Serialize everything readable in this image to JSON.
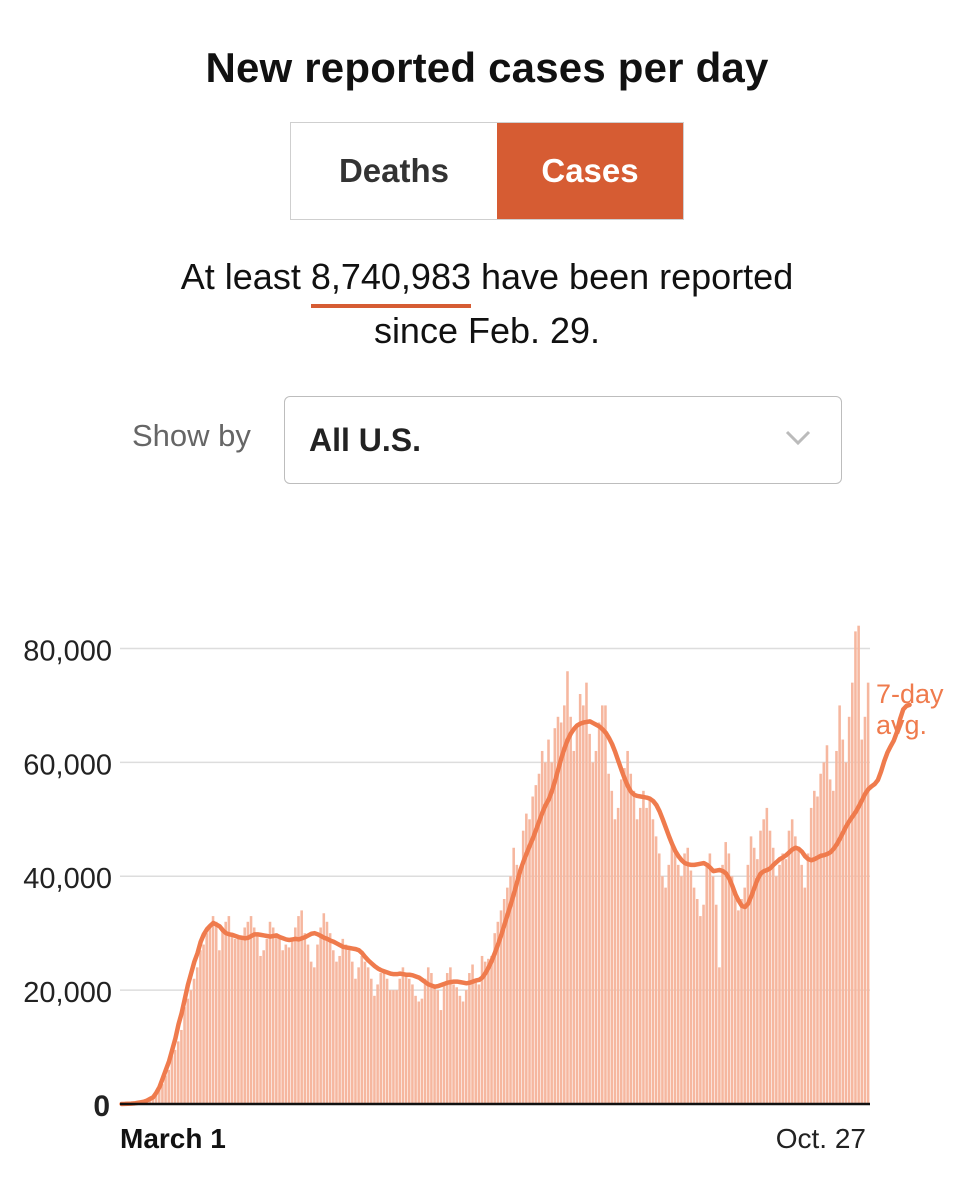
{
  "page": {
    "title": "New reported cases per day",
    "toggle": {
      "deaths_label": "Deaths",
      "cases_label": "Cases",
      "selected": "Cases"
    },
    "summary": {
      "prefix": "At least ",
      "total": "8,740,983",
      "suffix": " have been reported",
      "line2": "since Feb. 29."
    },
    "show_by": {
      "label": "Show by",
      "value": "All U.S.",
      "icon": "chevron-down-icon"
    }
  },
  "colors": {
    "accent": "#d65c33",
    "bar": "#f6b79f",
    "line": "#ef7b4d",
    "grid": "#dddddd"
  },
  "chart_data": {
    "type": "bar",
    "x_start_label": "March 1",
    "x_end_label": "Oct. 27",
    "yticks": [
      "0",
      "20,000",
      "40,000",
      "60,000",
      "80,000"
    ],
    "ylim": [
      0,
      85000
    ],
    "series": [
      {
        "name": "",
        "values": [
          0,
          20,
          40,
          60,
          100,
          200,
          250,
          400,
          600,
          900,
          1200,
          1800,
          2500,
          3500,
          5000,
          6000,
          8500,
          9500,
          11000,
          13000,
          17000,
          18500,
          20000,
          22000,
          24000,
          27000,
          28000,
          30000,
          31000,
          33000,
          32000,
          27000,
          31000,
          32000,
          33000,
          30000,
          29000,
          29000,
          29000,
          31000,
          32000,
          33000,
          31000,
          30000,
          26000,
          27000,
          29000,
          32000,
          31000,
          30000,
          29000,
          27000,
          28000,
          27500,
          29000,
          31000,
          33000,
          34000,
          30000,
          28000,
          25000,
          24000,
          28000,
          31000,
          33500,
          32000,
          30000,
          27000,
          25000,
          26000,
          29000,
          28000,
          27000,
          25000,
          22000,
          24000,
          26000,
          25000,
          24000,
          22000,
          19000,
          21000,
          23000,
          23000,
          22000,
          20000,
          20000,
          20000,
          22000,
          24000,
          23000,
          22000,
          21000,
          19000,
          18000,
          18500,
          22000,
          24000,
          23000,
          21000,
          20000,
          16500,
          21000,
          23000,
          24000,
          21000,
          20500,
          19000,
          18000,
          20000,
          23000,
          24500,
          22000,
          21000,
          26000,
          25000,
          25500,
          26000,
          30000,
          32000,
          34000,
          36000,
          38000,
          40000,
          45000,
          42000,
          40000,
          48000,
          51000,
          50000,
          54000,
          56000,
          58000,
          62000,
          60000,
          64000,
          60000,
          66000,
          68000,
          67000,
          70000,
          76000,
          68000,
          62000,
          66000,
          72000,
          70000,
          74000,
          65000,
          60000,
          62000,
          67000,
          70000,
          70000,
          58000,
          55000,
          50000,
          52000,
          57000,
          59000,
          62000,
          58000,
          55000,
          50000,
          52000,
          55000,
          52000,
          54000,
          50000,
          47000,
          44000,
          40000,
          38000,
          42000,
          46000,
          44000,
          42000,
          40000,
          44000,
          45000,
          41000,
          38000,
          36000,
          33000,
          35000,
          42000,
          44000,
          40000,
          35000,
          24000,
          42000,
          46000,
          44000,
          40000,
          37000,
          34000,
          36000,
          38000,
          42000,
          47000,
          45000,
          43000,
          48000,
          50000,
          52000,
          48000,
          45000,
          40000,
          42000,
          44000,
          43000,
          48000,
          50000,
          47000,
          45000,
          42000,
          38000,
          44000,
          52000,
          55000,
          54000,
          58000,
          60000,
          63000,
          57000,
          55000,
          62000,
          70000,
          64000,
          60000,
          68000,
          74000,
          83000,
          84000,
          64000,
          68000,
          74000
        ]
      },
      {
        "name": "7-day avg.",
        "values": [
          10,
          20,
          40,
          60,
          100,
          200,
          300,
          400,
          600,
          900,
          1200,
          2000,
          3000,
          4500,
          6000,
          7500,
          9500,
          11500,
          14000,
          16000,
          18500,
          21000,
          23000,
          25000,
          26500,
          28500,
          29800,
          30700,
          31300,
          31800,
          31500,
          31200,
          30500,
          30000,
          29800,
          29700,
          29500,
          29300,
          29200,
          29100,
          29200,
          29500,
          29800,
          29800,
          29700,
          29600,
          29500,
          29400,
          29500,
          29600,
          29300,
          29100,
          28900,
          28800,
          28900,
          29000,
          28900,
          29100,
          29300,
          29600,
          29900,
          30000,
          29800,
          29500,
          29200,
          29000,
          28700,
          28500,
          28200,
          27900,
          27600,
          27500,
          27400,
          27300,
          27200,
          27000,
          26500,
          25800,
          25200,
          24700,
          24200,
          23800,
          23500,
          23300,
          23100,
          22900,
          22800,
          22800,
          22900,
          22800,
          22700,
          22700,
          22600,
          22400,
          22200,
          21800,
          21400,
          21000,
          20800,
          20600,
          20700,
          20900,
          21100,
          21300,
          21400,
          21500,
          21500,
          21400,
          21300,
          21200,
          21300,
          21500,
          21700,
          21800,
          22200,
          23000,
          24000,
          25200,
          26600,
          28100,
          29700,
          31500,
          33300,
          35100,
          37000,
          39000,
          41000,
          42600,
          44000,
          45400,
          46700,
          48200,
          49700,
          51200,
          52500,
          53500,
          55000,
          56800,
          58800,
          60800,
          62500,
          64000,
          65100,
          65900,
          66500,
          66800,
          67000,
          67100,
          67200,
          66900,
          66600,
          66300,
          65800,
          65200,
          64300,
          63200,
          61800,
          60200,
          58600,
          57100,
          55800,
          54800,
          54300,
          54100,
          54000,
          53900,
          53800,
          53600,
          53200,
          52500,
          51400,
          50000,
          48500,
          47000,
          45600,
          44400,
          43500,
          42800,
          42300,
          42100,
          42000,
          42000,
          42100,
          42200,
          42300,
          42000,
          41500,
          40900,
          41000,
          41100,
          40900,
          40500,
          39600,
          38300,
          36800,
          35700,
          34800,
          34600,
          35200,
          36500,
          38000,
          39500,
          40500,
          40900,
          41100,
          41400,
          42000,
          42500,
          43000,
          43300,
          43700,
          44200,
          44700,
          45000,
          44800,
          44300,
          43500,
          43000,
          42800,
          43000,
          43300,
          43600,
          43700,
          43900,
          44200,
          44800,
          45600,
          46600,
          47700,
          48800,
          49700,
          50500,
          51300,
          52300,
          53400,
          54500,
          55300,
          55800,
          56200,
          56900,
          58400,
          60200,
          61700,
          62800,
          63800,
          65300,
          67600,
          69300,
          69900,
          70100
        ]
      }
    ]
  }
}
